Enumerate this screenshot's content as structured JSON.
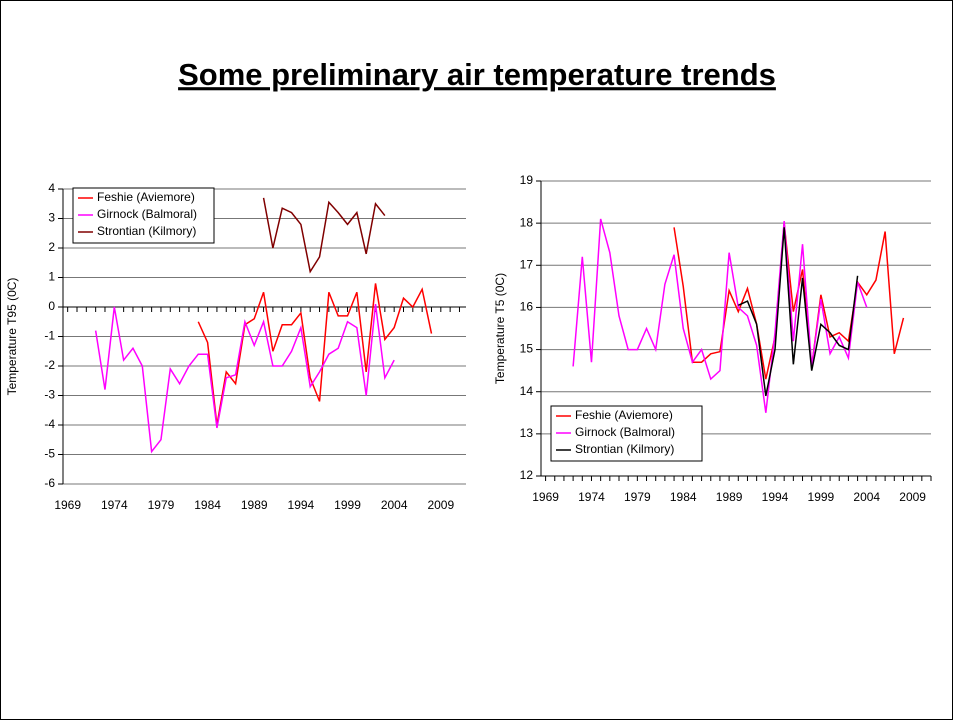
{
  "title": "Some preliminary air temperature trends",
  "chart_data": [
    {
      "type": "line",
      "ylabel": "Temperature T95 (0C)",
      "xlim": [
        1968.5,
        2011.7
      ],
      "xticks": [
        1969,
        1974,
        1979,
        1984,
        1989,
        1994,
        1999,
        2004,
        2009
      ],
      "ylim": [
        -6,
        4
      ],
      "yticks": [
        -6,
        -5,
        -4,
        -3,
        -2,
        -1,
        0,
        1,
        2,
        3,
        4
      ],
      "grid": true,
      "legend": "upper left",
      "series": [
        {
          "name": "Feshie (Aviemore)",
          "color": "#ff0000",
          "x": [
            1983,
            1984,
            1985,
            1986,
            1987,
            1988,
            1989,
            1990,
            1991,
            1992,
            1993,
            1994,
            1995,
            1996,
            1997,
            1998,
            1999,
            2000,
            2001,
            2002,
            2003,
            2004,
            2005,
            2006,
            2007,
            2008
          ],
          "values": [
            -0.5,
            -1.2,
            -4.0,
            -2.2,
            -2.6,
            -0.6,
            -0.4,
            0.5,
            -1.5,
            -0.6,
            -0.6,
            -0.2,
            -2.4,
            -3.2,
            0.5,
            -0.3,
            -0.3,
            0.5,
            -2.2,
            0.8,
            -1.1,
            -0.7,
            0.3,
            0.0,
            0.6,
            -0.9
          ]
        },
        {
          "name": "Girnock (Balmoral)",
          "color": "#ff00ff",
          "x": [
            1972,
            1973,
            1974,
            1975,
            1976,
            1977,
            1978,
            1979,
            1980,
            1981,
            1982,
            1983,
            1984,
            1985,
            1986,
            1987,
            1988,
            1989,
            1990,
            1991,
            1992,
            1993,
            1994,
            1995,
            1996,
            1997,
            1998,
            1999,
            2000,
            2001,
            2002,
            2003,
            2004
          ],
          "values": [
            -0.8,
            -2.8,
            0.0,
            -1.8,
            -1.4,
            -2.0,
            -4.9,
            -4.5,
            -2.1,
            -2.6,
            -2.0,
            -1.6,
            -1.6,
            -4.1,
            -2.4,
            -2.3,
            -0.5,
            -1.3,
            -0.5,
            -2.0,
            -2.0,
            -1.5,
            -0.7,
            -2.7,
            -2.2,
            -1.6,
            -1.4,
            -0.5,
            -0.7,
            -3.0,
            0.1,
            -2.4,
            -1.8
          ]
        },
        {
          "name": "Strontian (Kilmory)",
          "color": "#800000",
          "x": [
            1990,
            1991,
            1992,
            1993,
            1994,
            1995,
            1996,
            1997,
            1998,
            1999,
            2000,
            2001,
            2002,
            2003
          ],
          "values": [
            3.7,
            2.0,
            3.35,
            3.2,
            2.8,
            1.2,
            1.7,
            3.55,
            3.2,
            2.8,
            3.2,
            1.8,
            3.5,
            3.1
          ]
        }
      ]
    },
    {
      "type": "line",
      "ylabel": "Temperature T5 (0C)",
      "xlim": [
        1968.5,
        2011
      ],
      "xticks": [
        1969,
        1974,
        1979,
        1984,
        1989,
        1994,
        1999,
        2004,
        2009
      ],
      "ylim": [
        12,
        19
      ],
      "yticks": [
        12,
        13,
        14,
        15,
        16,
        17,
        18,
        19
      ],
      "grid": true,
      "legend": "lower left",
      "series": [
        {
          "name": "Feshie (Aviemore)",
          "color": "#ff0000",
          "x": [
            1983,
            1984,
            1985,
            1986,
            1987,
            1988,
            1989,
            1990,
            1991,
            1992,
            1993,
            1994,
            1995,
            1996,
            1997,
            1998,
            1999,
            2000,
            2001,
            2002,
            2003,
            2004,
            2005,
            2006,
            2007,
            2008
          ],
          "values": [
            17.9,
            16.5,
            14.7,
            14.7,
            14.9,
            14.95,
            16.4,
            15.9,
            16.45,
            15.6,
            14.3,
            15.3,
            18.0,
            15.9,
            16.9,
            14.6,
            16.3,
            15.3,
            15.4,
            15.2,
            16.6,
            16.3,
            16.65,
            17.8,
            14.9,
            15.75
          ]
        },
        {
          "name": "Girnock (Balmoral)",
          "color": "#ff00ff",
          "x": [
            1972,
            1973,
            1974,
            1975,
            1976,
            1977,
            1978,
            1979,
            1980,
            1981,
            1982,
            1983,
            1984,
            1985,
            1986,
            1987,
            1988,
            1989,
            1990,
            1991,
            1992,
            1993,
            1994,
            1995,
            1996,
            1997,
            1998,
            1999,
            2000,
            2001,
            2002,
            2003,
            2004
          ],
          "values": [
            14.6,
            17.2,
            14.7,
            18.1,
            17.3,
            15.8,
            15.0,
            15.0,
            15.5,
            15.0,
            16.55,
            17.25,
            15.5,
            14.7,
            15.0,
            14.3,
            14.5,
            17.3,
            16.0,
            15.8,
            15.1,
            13.5,
            15.4,
            18.05,
            15.2,
            17.5,
            14.6,
            16.2,
            14.9,
            15.3,
            14.8,
            16.6,
            16.0
          ]
        },
        {
          "name": "Strontian (Kilmory)",
          "color": "#000000",
          "x": [
            1990,
            1991,
            1992,
            1993,
            1994,
            1995,
            1996,
            1997,
            1998,
            1999,
            2000,
            2001,
            2002,
            2003
          ],
          "values": [
            16.05,
            16.15,
            15.6,
            13.9,
            15.0,
            17.9,
            14.65,
            16.7,
            14.5,
            15.6,
            15.4,
            15.1,
            15.0,
            16.75
          ]
        }
      ]
    }
  ]
}
